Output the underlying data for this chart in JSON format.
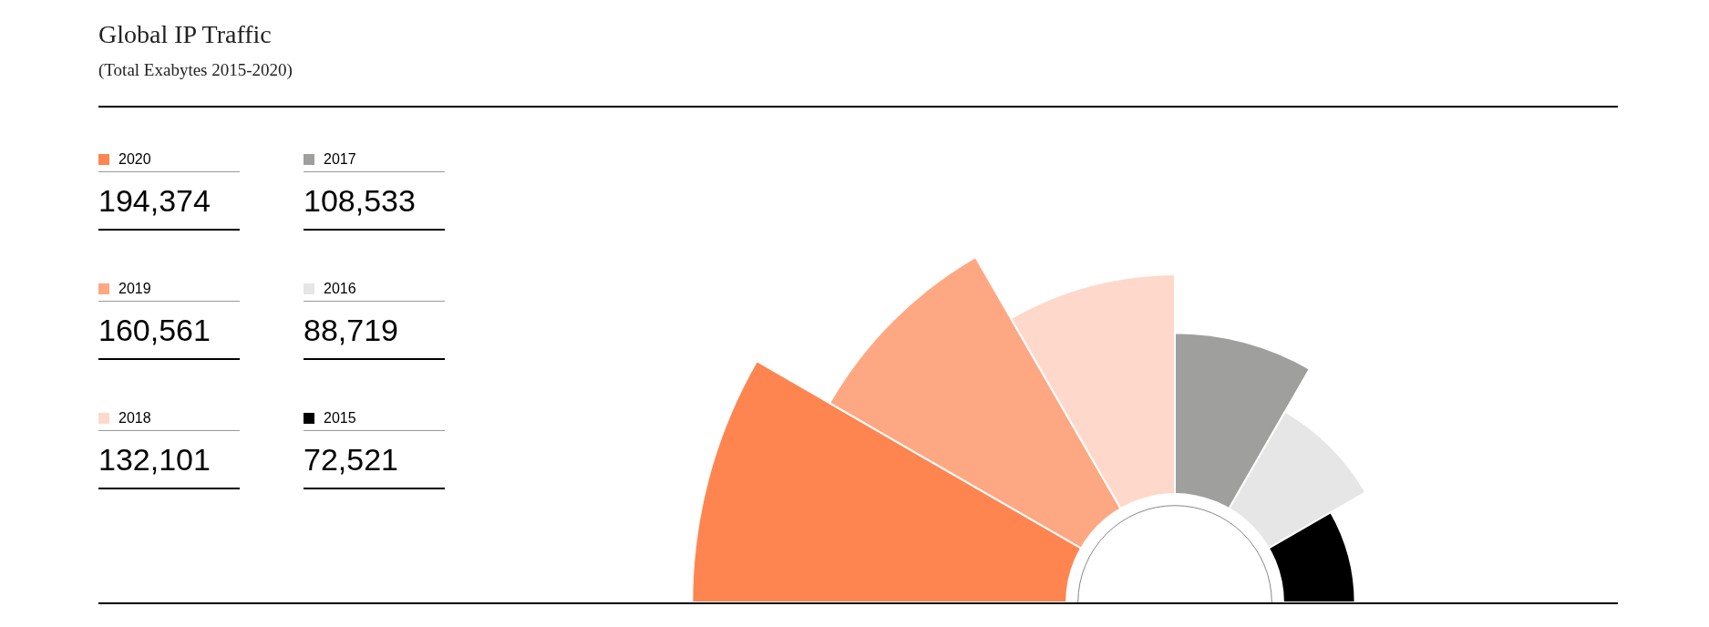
{
  "chart_data": {
    "type": "other",
    "title": "Global IP Traffic",
    "subtitle": "(Total Exabytes 2015-2020)",
    "categories": [
      "2020",
      "2019",
      "2018",
      "2017",
      "2016",
      "2015"
    ],
    "values": [
      194374,
      160561,
      132101,
      108533,
      88719,
      72521
    ],
    "value_labels": [
      "194,374",
      "160,561",
      "132,101",
      "108,533",
      "88,719",
      "72,521"
    ],
    "colors": [
      "#ff8550",
      "#fea883",
      "#fed9cb",
      "#9f9f9d",
      "#e6e6e6",
      "#000000"
    ]
  }
}
